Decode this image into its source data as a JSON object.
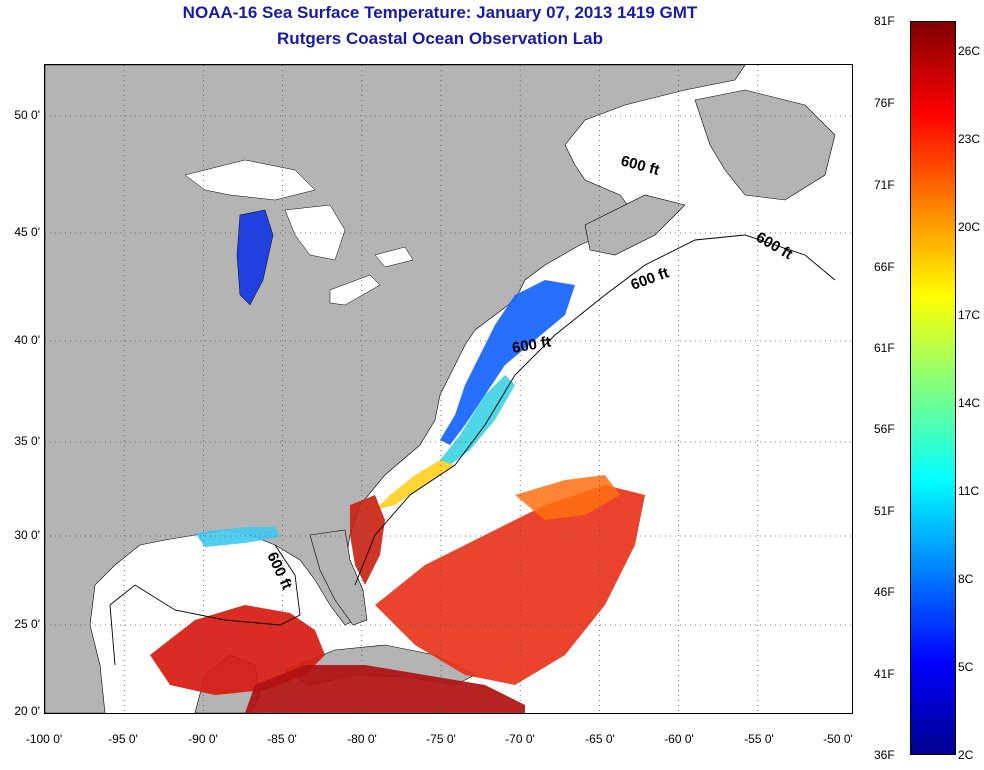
{
  "title_line1": "NOAA-16 Sea Surface Temperature:  January 07, 2013 1419 GMT",
  "title_line2": "Rutgers Coastal Ocean Observation Lab",
  "map": {
    "lon_ticks": [
      "-100 0'",
      "-95 0'",
      "-90 0'",
      "-85 0'",
      "-80 0'",
      "-75 0'",
      "-70 0'",
      "-65 0'",
      "-60 0'",
      "-55 0'",
      "-50 0'"
    ],
    "lat_ticks": [
      "50 0'",
      "45 0'",
      "40 0'",
      "35 0'",
      "30 0'",
      "25 0'",
      "20 0'"
    ],
    "lon_range": [
      -100,
      -50
    ],
    "lat_range": [
      20,
      52
    ],
    "contour_labels": [
      "600 ft",
      "600 ft",
      "600 ft",
      "600 ft",
      "600 ft"
    ],
    "colors": {
      "land": "#b4b4b4",
      "no_data": "#ffffff",
      "grid": "#555555"
    }
  },
  "colorbar": {
    "f_labels": [
      "81F",
      "76F",
      "71F",
      "66F",
      "61F",
      "56F",
      "51F",
      "46F",
      "41F",
      "36F"
    ],
    "c_labels": [
      "26C",
      "23C",
      "20C",
      "17C",
      "14C",
      "11C",
      "8C",
      "5C",
      "2C"
    ],
    "colors": [
      "#00008f",
      "#0000ff",
      "#0080ff",
      "#00ffff",
      "#80ff80",
      "#ffff00",
      "#ff8000",
      "#ff0000",
      "#800000"
    ]
  }
}
